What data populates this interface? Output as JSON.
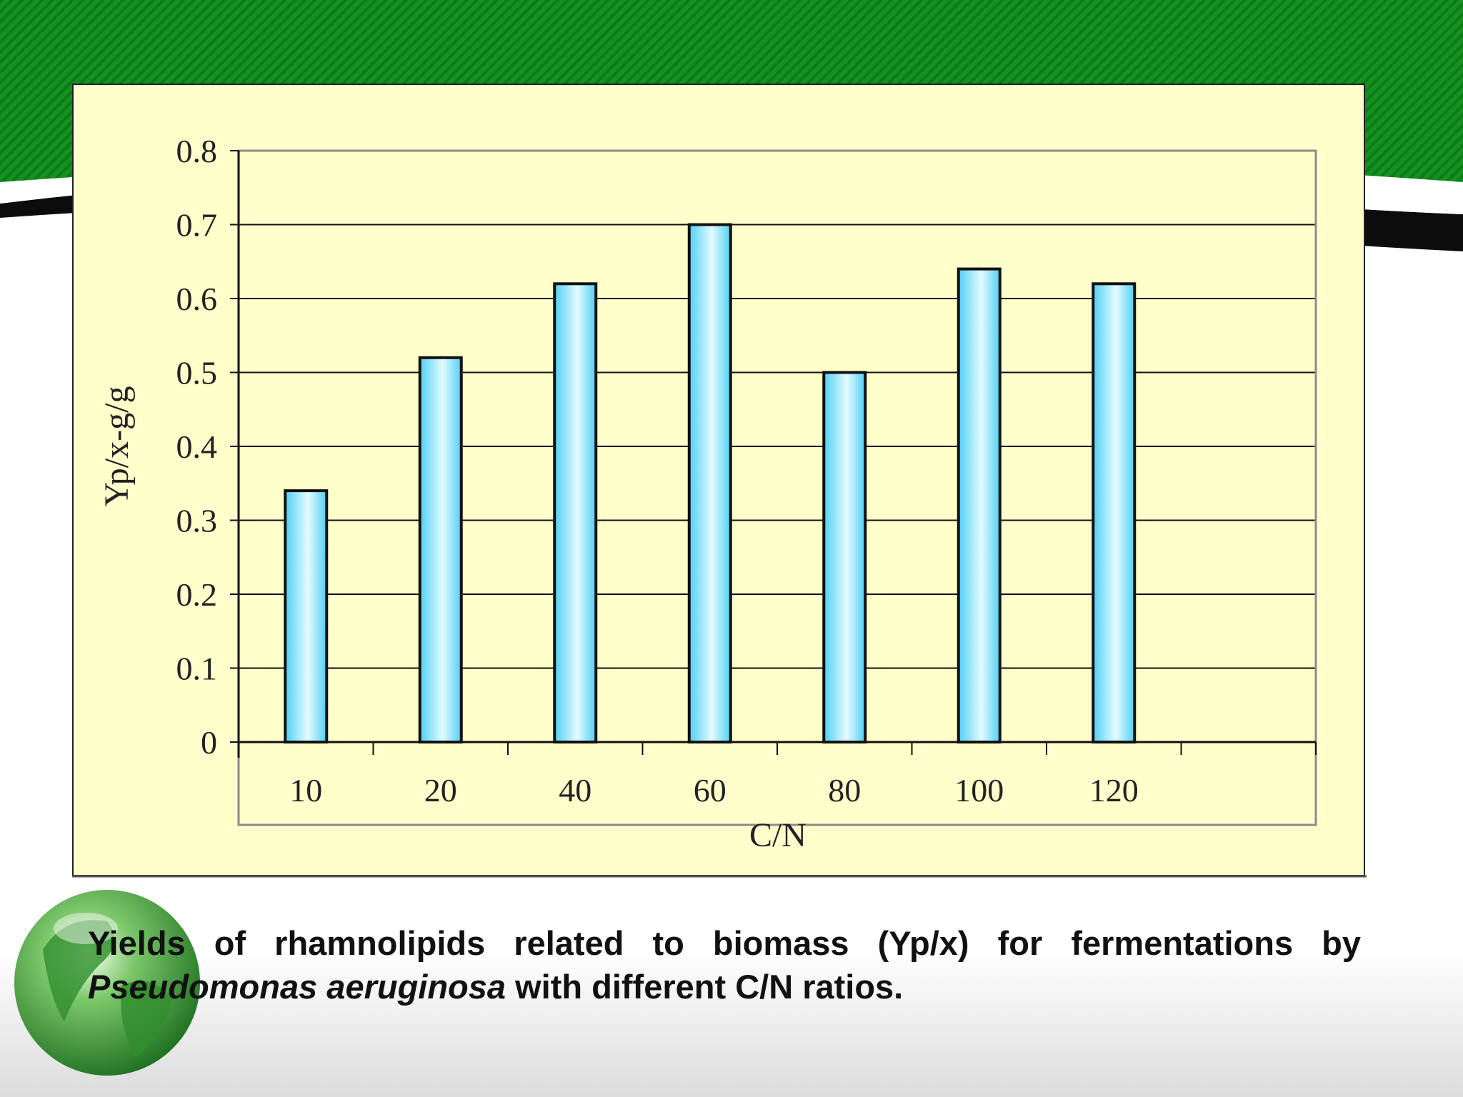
{
  "theme": {
    "banner_color": "#128a1e",
    "stripe_color": "#0c0c0c",
    "panel_color": "#ffffcc",
    "bar_color": "#4fd0f4",
    "bar_highlight": "#e4fbff"
  },
  "caption": {
    "line1": "Yields of rhamnolipids related to biomass (Yp/x)  for fermentations by",
    "italic": "Pseudomonas aeruginosa",
    "rest": " with different C/N ratios."
  },
  "chart_data": {
    "type": "bar",
    "title": "",
    "xlabel": "C/N",
    "ylabel": "Yp/x-g/g",
    "categories": [
      "10",
      "20",
      "40",
      "60",
      "80",
      "100",
      "120"
    ],
    "values": [
      0.34,
      0.52,
      0.62,
      0.7,
      0.5,
      0.64,
      0.62
    ],
    "ylim": [
      0,
      0.8
    ],
    "yticks": [
      "0",
      "0.1",
      "0.2",
      "0.3",
      "0.4",
      "0.5",
      "0.6",
      "0.7",
      "0.8"
    ],
    "grid": true,
    "legend": "none"
  }
}
